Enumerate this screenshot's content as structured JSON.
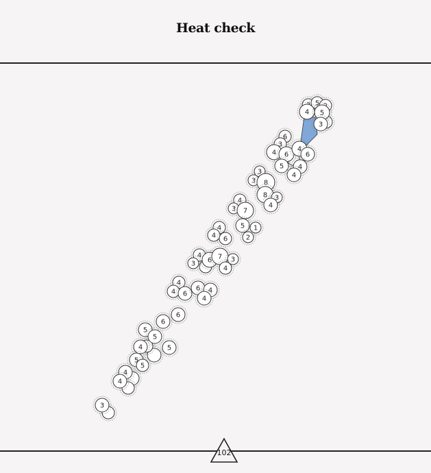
{
  "title": "Heat check",
  "counter": {
    "value": "102"
  },
  "colors": {
    "background": "#f6f4f5",
    "bubble_fill": "#ffffff",
    "bubble_stroke": "#333333",
    "highlight": "#7fa8d8",
    "line": "#222222"
  },
  "bubbles": [
    {
      "label": "3"
    },
    {
      "label": "5"
    },
    {
      "label": "2"
    },
    {
      "label": "4"
    },
    {
      "label": "5"
    },
    {
      "label": "3"
    },
    {
      "label": "6"
    },
    {
      "label": "3"
    },
    {
      "label": "4"
    },
    {
      "label": "6"
    },
    {
      "label": "4"
    },
    {
      "label": "6"
    },
    {
      "label": "5"
    },
    {
      "label": "4"
    },
    {
      "label": "4"
    },
    {
      "label": "3"
    },
    {
      "label": "3"
    },
    {
      "label": "8"
    },
    {
      "label": "8"
    },
    {
      "label": "3"
    },
    {
      "label": "4"
    },
    {
      "label": "4"
    },
    {
      "label": "3"
    },
    {
      "label": "7"
    },
    {
      "label": "5"
    },
    {
      "label": "1"
    },
    {
      "label": "2"
    },
    {
      "label": "4"
    },
    {
      "label": "4"
    },
    {
      "label": "6"
    },
    {
      "label": "4"
    },
    {
      "label": "3"
    },
    {
      "label": "6"
    },
    {
      "label": "7"
    },
    {
      "label": "3"
    },
    {
      "label": "4"
    },
    {
      "label": "4"
    },
    {
      "label": "4"
    },
    {
      "label": "6"
    },
    {
      "label": "6"
    },
    {
      "label": "4"
    },
    {
      "label": "4"
    },
    {
      "label": "6"
    },
    {
      "label": "6"
    },
    {
      "label": "5"
    },
    {
      "label": "5"
    },
    {
      "label": "4"
    },
    {
      "label": "5"
    },
    {
      "label": "5"
    },
    {
      "label": "5"
    },
    {
      "label": "4"
    },
    {
      "label": "4"
    },
    {
      "label": "3"
    }
  ]
}
